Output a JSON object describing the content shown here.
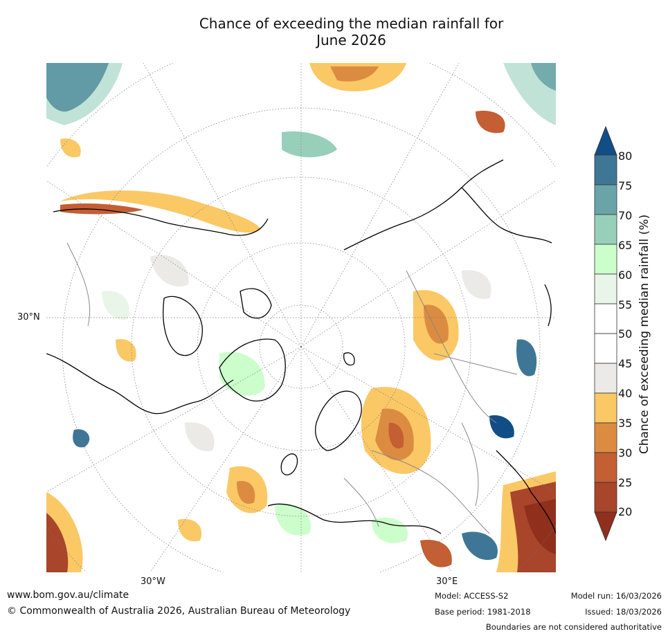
{
  "title_line1": "Chance of exceeding the median rainfall for",
  "title_line2": "June 2026",
  "axis_labels": {
    "lat": "30°N",
    "lon_west": "30°W",
    "lon_east": "30°E"
  },
  "colorbar": {
    "title": "Chance of exceeding median rainfall (%)",
    "ticks": [
      "80",
      "75",
      "70",
      "65",
      "60",
      "55",
      "50",
      "45",
      "40",
      "35",
      "30",
      "25",
      "20"
    ],
    "colors": {
      "lt20": "#8f2f1c",
      "20_25": "#a8452a",
      "25_30": "#c45e33",
      "30_35": "#dc8c41",
      "35_40": "#fbc866",
      "40_45": "#eceae6",
      "45_50": "#ffffff",
      "50_55": "#ffffff",
      "55_60": "#e9f5e8",
      "60_65": "#ccfecb",
      "65_70": "#98cfba",
      "70_75": "#6aa4a8",
      "75_80": "#3f7696",
      "gt80": "#124e86"
    }
  },
  "footer": {
    "url": "www.bom.gov.au/climate",
    "copyright": "© Commonwealth of Australia 2026, Australian Bureau of Meteorology",
    "model": "Model: ACCESS-S2",
    "base_period": "Base period: 1981-2018",
    "model_run": "Model run: 16/03/2026",
    "issued": "Issued: 18/03/2026",
    "disclaimer": "Boundaries are not considered authoritative"
  }
}
